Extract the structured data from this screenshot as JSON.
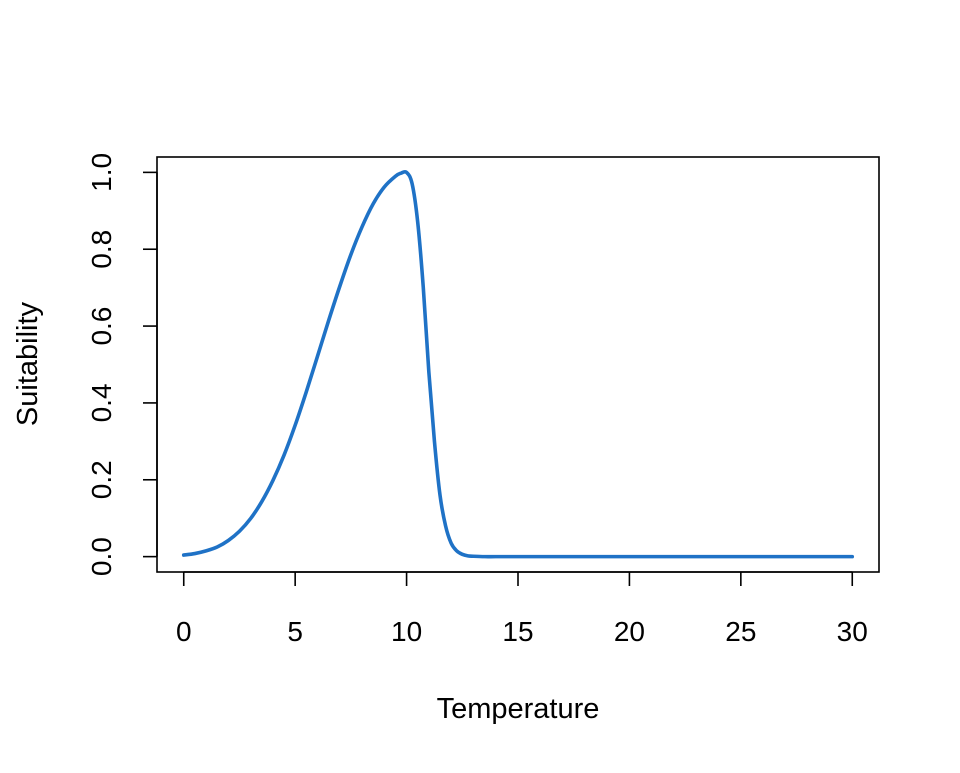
{
  "chart_data": {
    "type": "line",
    "title": "",
    "xlabel": "Temperature",
    "ylabel": "Suitability",
    "xlim": [
      -1.2,
      31.2
    ],
    "ylim": [
      -0.04,
      1.04
    ],
    "xticks": [
      0,
      5,
      10,
      15,
      20,
      25,
      30
    ],
    "yticks": [
      0.0,
      0.2,
      0.4,
      0.6,
      0.8,
      1.0
    ],
    "xtick_labels": [
      "0",
      "5",
      "10",
      "15",
      "20",
      "25",
      "30"
    ],
    "ytick_labels": [
      "0.0",
      "0.2",
      "0.4",
      "0.6",
      "0.8",
      "1.0"
    ],
    "grid": false,
    "legend": "none",
    "series": [
      {
        "color": "#1f72c6",
        "x": [
          0,
          0.5,
          1,
          1.5,
          2,
          2.5,
          3,
          3.5,
          4,
          4.5,
          5,
          5.5,
          6,
          6.5,
          7,
          7.5,
          8,
          8.5,
          9,
          9.5,
          9.75,
          10,
          10.25,
          10.5,
          10.75,
          11,
          11.25,
          11.5,
          11.75,
          12,
          12.25,
          12.5,
          12.75,
          13,
          13.5,
          14,
          15,
          20,
          25,
          30
        ],
        "y": [
          0.004,
          0.008,
          0.015,
          0.025,
          0.042,
          0.066,
          0.099,
          0.143,
          0.198,
          0.264,
          0.342,
          0.429,
          0.521,
          0.614,
          0.703,
          0.786,
          0.858,
          0.918,
          0.962,
          0.99,
          0.998,
          1.0,
          0.97,
          0.87,
          0.7,
          0.48,
          0.3,
          0.16,
          0.08,
          0.035,
          0.015,
          0.006,
          0.002,
          0.001,
          0.0,
          0.0,
          0.0,
          0.0,
          0.0,
          0.0
        ]
      }
    ]
  }
}
